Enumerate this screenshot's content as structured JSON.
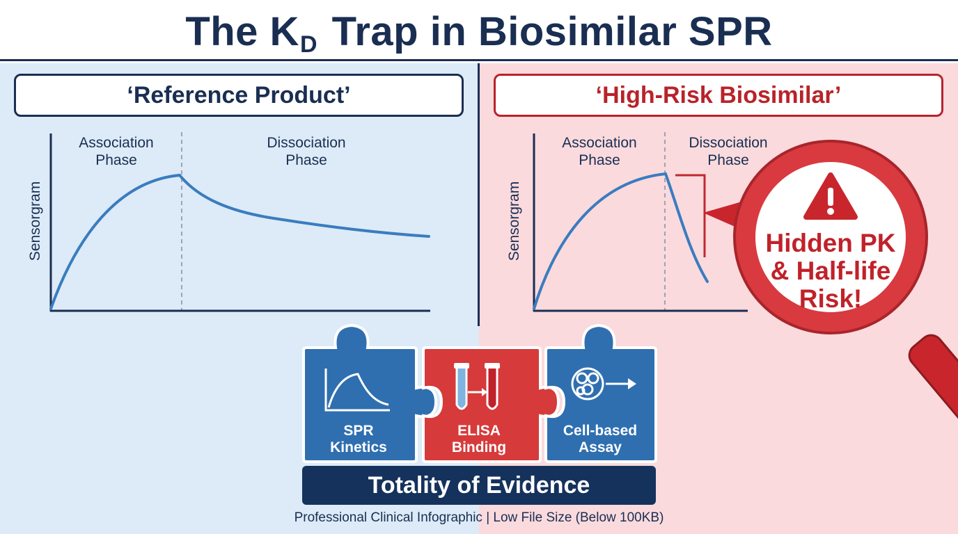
{
  "header": {
    "title_prefix": "The K",
    "title_subscript": "D",
    "title_suffix": " Trap in Biosimilar SPR"
  },
  "panels": {
    "left": {
      "label": "‘Reference Product’",
      "phase_association": [
        "Association",
        "Phase"
      ],
      "phase_dissociation": [
        "Dissociation",
        "Phase"
      ],
      "y_axis_label": "Sensorgram"
    },
    "right": {
      "label": "‘High-Risk Biosimilar’",
      "phase_association": [
        "Association",
        "Phase"
      ],
      "phase_dissociation": [
        "Dissociation",
        "Phase"
      ],
      "y_axis_label": "Sensorgram"
    }
  },
  "callout": {
    "lines": [
      "Hidden PK",
      "& Half-life",
      "Risk!"
    ],
    "icon": "warning-icon"
  },
  "puzzle": {
    "pieces": [
      {
        "icon": "sensorgram-icon",
        "lines": [
          "SPR",
          "Kinetics"
        ],
        "color": "#2f6fb0"
      },
      {
        "icon": "test-tubes-icon",
        "lines": [
          "ELISA",
          "Binding"
        ],
        "color": "#d63a3a"
      },
      {
        "icon": "cells-icon",
        "lines": [
          "Cell-based",
          "Assay"
        ],
        "color": "#2f6fb0"
      }
    ]
  },
  "footer": {
    "banner": "Totality of Evidence",
    "note": "Professional Clinical Infographic  | Low File Size (Below 100KB)"
  },
  "colors": {
    "navy": "#1a2e52",
    "blue_curve": "#3a7cbf",
    "red": "#b8232a",
    "left_bg": "#dcebf7",
    "right_bg": "#fadadd"
  }
}
